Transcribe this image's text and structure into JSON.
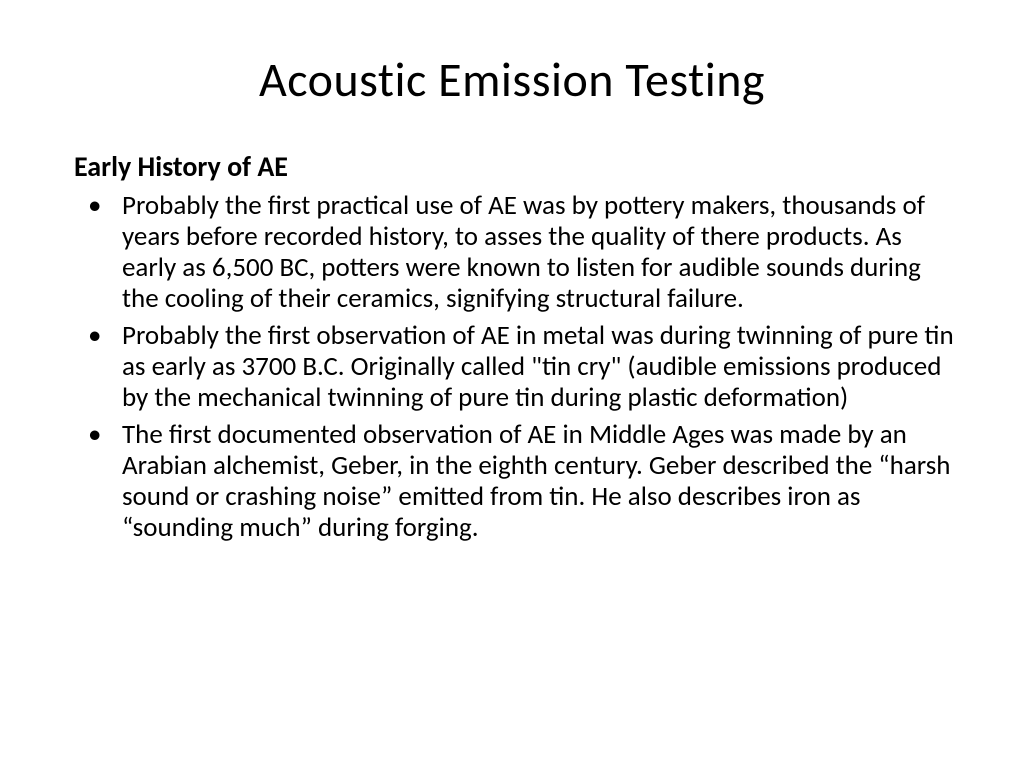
{
  "slide": {
    "title": "Acoustic Emission Testing",
    "subheading": "Early History of AE",
    "bullets": [
      "Probably the first practical use of AE was by pottery makers, thousands of years before recorded history, to asses the quality of there products. As early as 6,500 BC, potters were known to listen for audible sounds during the cooling of their ceramics, signifying structural failure.",
      "Probably the first observation of AE in metal was during twinning of pure tin as early as 3700 B.C.  Originally called \"tin cry\" (audible emissions produced by the mechanical twinning of pure tin during plastic deformation)",
      "The first documented observation of AE in Middle Ages was made by an Arabian alchemist, Geber, in the eighth century. Geber described the “harsh sound or crashing noise” emitted from tin. He also describes iron as “sounding much” during forging."
    ]
  },
  "style": {
    "background_color": "#ffffff",
    "text_color": "#000000",
    "title_fontsize": 48,
    "subheading_fontsize": 28,
    "body_fontsize": 27,
    "font_family": "Calibri"
  }
}
